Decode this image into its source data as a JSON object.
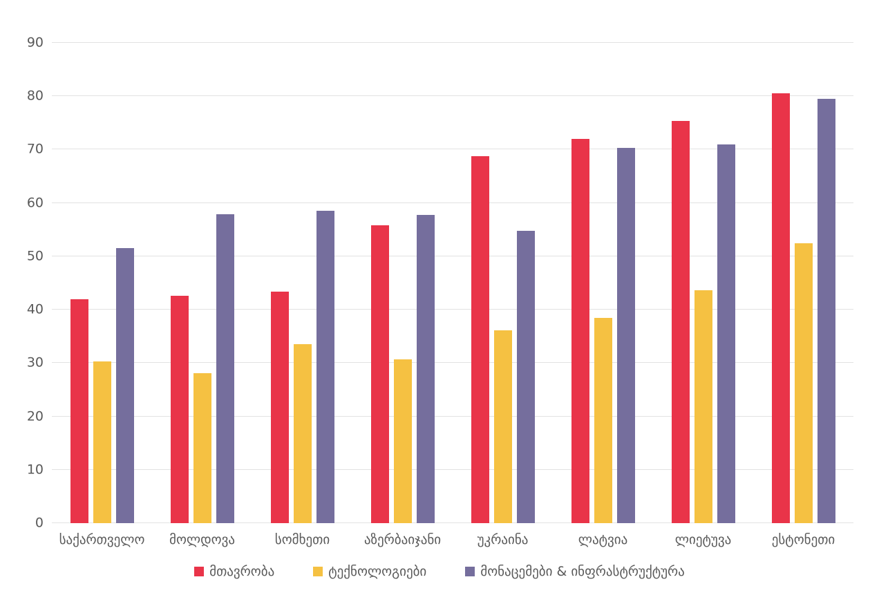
{
  "chart_data": {
    "type": "bar",
    "title": "",
    "xlabel": "",
    "ylabel": "",
    "ylim": [
      0,
      90
    ],
    "yticks": [
      0,
      10,
      20,
      30,
      40,
      50,
      60,
      70,
      80,
      90
    ],
    "grid": true,
    "legend_position": "bottom",
    "background_color": "#ffffff",
    "gridline_color": "#e2e2e2",
    "axis_text_color": "#595959",
    "categories": [
      "საქართველო",
      "მოლდოვა",
      "სომხეთი",
      "აზერბაიჯანი",
      "უკრაინა",
      "ლატვია",
      "ლიეტუვა",
      "ესტონეთი"
    ],
    "category_keys": [
      "georgia",
      "moldova",
      "armenia",
      "azerbaijan",
      "ukraine",
      "latvia",
      "lithuania",
      "estonia"
    ],
    "series": [
      {
        "name": "მთავრობა",
        "key": "government",
        "color": "#e93449",
        "values": [
          42.0,
          42.6,
          43.4,
          55.8,
          68.8,
          72.0,
          75.4,
          80.5
        ]
      },
      {
        "name": "ტექნოლოგიები",
        "key": "technologies",
        "color": "#f5c142",
        "values": [
          30.3,
          28.1,
          33.6,
          30.7,
          36.1,
          38.5,
          43.7,
          52.5
        ]
      },
      {
        "name": "მონაცემები & ინფრასტრუქტურა",
        "key": "data-infrastructure",
        "color": "#756e9d",
        "values": [
          51.5,
          57.9,
          58.5,
          57.7,
          54.8,
          70.3,
          71.0,
          79.5
        ]
      }
    ]
  }
}
